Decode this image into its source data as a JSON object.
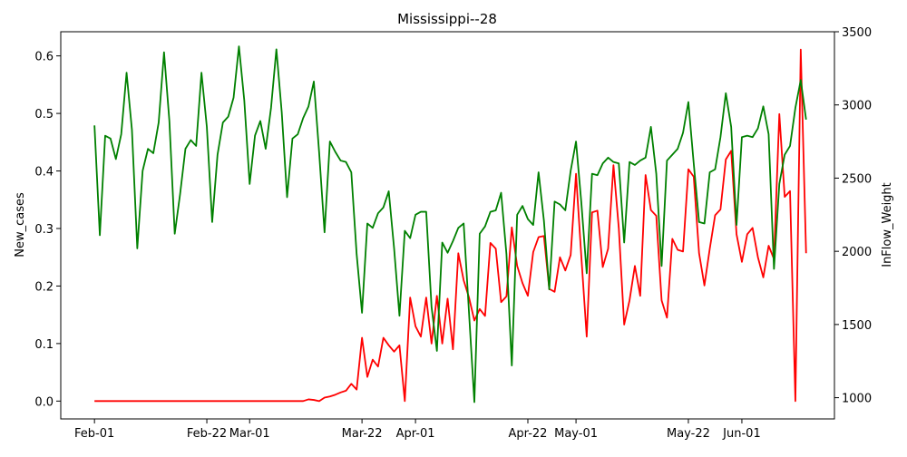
{
  "chart_data": {
    "type": "line",
    "title": "Mississippi--28",
    "xlabel": "",
    "ylabel": "New_cases",
    "ylabel_right": "InFlow_Weight",
    "x_start": "2020-02-01",
    "x_ticks": [
      "Feb-01",
      "Feb-22",
      "Mar-01",
      "Mar-22",
      "Apr-01",
      "Apr-22",
      "May-01",
      "May-22",
      "Jun-01"
    ],
    "x_tick_days": [
      0,
      21,
      29,
      50,
      60,
      81,
      90,
      111,
      121
    ],
    "xlim_days": [
      -6.3,
      138.3
    ],
    "ylim_left": [
      -0.031,
      0.642
    ],
    "ylim_right": [
      855,
      3500
    ],
    "yticks_left": [
      "0.0",
      "0.1",
      "0.2",
      "0.3",
      "0.4",
      "0.5",
      "0.6"
    ],
    "yticks_left_values": [
      0.0,
      0.1,
      0.2,
      0.3,
      0.4,
      0.5,
      0.6
    ],
    "yticks_right": [
      "1000",
      "1500",
      "2000",
      "2500",
      "3000",
      "3500"
    ],
    "yticks_right_values": [
      1000,
      1500,
      2000,
      2500,
      3000,
      3500
    ],
    "grid": false,
    "colors": {
      "new_cases": "#ff0000",
      "inflow_weight": "#008000"
    },
    "series": [
      {
        "axis": "left",
        "color": "#ff0000",
        "values": [
          0,
          0,
          0,
          0,
          0,
          0,
          0,
          0,
          0,
          0,
          0,
          0,
          0,
          0,
          0,
          0,
          0,
          0,
          0,
          0,
          0,
          0,
          0,
          0,
          0,
          0,
          0,
          0,
          0,
          0,
          0,
          0,
          0,
          0,
          0,
          0,
          0,
          0,
          0,
          0,
          0.003,
          0.002,
          0,
          0.006,
          0.008,
          0.011,
          0.015,
          0.018,
          0.03,
          0.02,
          0.11,
          0.042,
          0.072,
          0.06,
          0.11,
          0.097,
          0.086,
          0.097,
          0,
          0.18,
          0.13,
          0.112,
          0.18,
          0.1,
          0.183,
          0.1,
          0.178,
          0.09,
          0.257,
          0.21,
          0.18,
          0.14,
          0.16,
          0.148,
          0.275,
          0.265,
          0.172,
          0.182,
          0.302,
          0.235,
          0.205,
          0.183,
          0.259,
          0.285,
          0.287,
          0.195,
          0.19,
          0.25,
          0.227,
          0.254,
          0.395,
          0.25,
          0.112,
          0.328,
          0.331,
          0.233,
          0.265,
          0.41,
          0.3,
          0.133,
          0.175,
          0.235,
          0.183,
          0.393,
          0.332,
          0.322,
          0.175,
          0.145,
          0.282,
          0.263,
          0.26,
          0.403,
          0.39,
          0.257,
          0.201,
          0.265,
          0.323,
          0.333,
          0.42,
          0.435,
          0.29,
          0.242,
          0.29,
          0.301,
          0.25,
          0.215,
          0.27,
          0.247,
          0.499,
          0.355,
          0.365,
          0,
          0.611,
          0.257
        ]
      },
      {
        "axis": "right",
        "color": "#008000",
        "values": [
          2860,
          2110,
          2790,
          2770,
          2630,
          2800,
          3220,
          2830,
          2020,
          2550,
          2700,
          2670,
          2880,
          3360,
          2890,
          2120,
          2390,
          2700,
          2760,
          2720,
          3220,
          2850,
          2200,
          2660,
          2880,
          2920,
          3050,
          3400,
          3030,
          2460,
          2790,
          2890,
          2700,
          2980,
          3380,
          2950,
          2370,
          2770,
          2800,
          2910,
          2990,
          3160,
          2670,
          2130,
          2750,
          2680,
          2620,
          2610,
          2540,
          1980,
          1580,
          2190,
          2160,
          2260,
          2300,
          2410,
          2020,
          1560,
          2140,
          2090,
          2250,
          2270,
          2270,
          1620,
          1320,
          2060,
          1990,
          2070,
          2160,
          2190,
          1580,
          970,
          2120,
          2170,
          2270,
          2280,
          2400,
          1980,
          1220,
          2250,
          2310,
          2220,
          2180,
          2540,
          2210,
          1740,
          2340,
          2320,
          2280,
          2550,
          2750,
          2330,
          1850,
          2530,
          2520,
          2600,
          2640,
          2610,
          2600,
          2060,
          2610,
          2590,
          2620,
          2640,
          2850,
          2530,
          1900,
          2620,
          2660,
          2700,
          2810,
          3020,
          2600,
          2200,
          2190,
          2540,
          2560,
          2780,
          3080,
          2850,
          2180,
          2780,
          2790,
          2780,
          2840,
          2990,
          2800,
          1880,
          2460,
          2660,
          2720,
          2980,
          3170,
          2900
        ]
      }
    ]
  }
}
